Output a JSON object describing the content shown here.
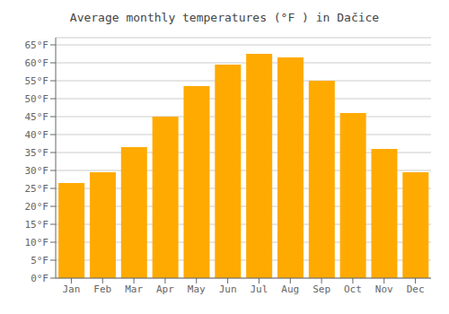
{
  "chart_data": {
    "type": "bar",
    "title": "Average monthly temperatures (°F ) in Dačice",
    "categories": [
      "Jan",
      "Feb",
      "Mar",
      "Apr",
      "May",
      "Jun",
      "Jul",
      "Aug",
      "Sep",
      "Oct",
      "Nov",
      "Dec"
    ],
    "values": [
      26.5,
      29.5,
      36.5,
      45.0,
      53.5,
      59.5,
      62.5,
      61.5,
      55.0,
      46.0,
      36.0,
      29.5
    ],
    "color": "#FFAA00",
    "ylim": [
      0,
      67
    ],
    "yticks": [
      {
        "value": 0,
        "label": "0°F"
      },
      {
        "value": 5,
        "label": "5°F"
      },
      {
        "value": 10,
        "label": "10°F"
      },
      {
        "value": 15,
        "label": "15°F"
      },
      {
        "value": 20,
        "label": "20°F"
      },
      {
        "value": 25,
        "label": "25°F"
      },
      {
        "value": 30,
        "label": "30°F"
      },
      {
        "value": 35,
        "label": "35°F"
      },
      {
        "value": 40,
        "label": "40°F"
      },
      {
        "value": 45,
        "label": "45°F"
      },
      {
        "value": 50,
        "label": "50°F"
      },
      {
        "value": 55,
        "label": "55°F"
      },
      {
        "value": 60,
        "label": "60°F"
      },
      {
        "value": 65,
        "label": "65°F"
      }
    ],
    "grid": true
  }
}
